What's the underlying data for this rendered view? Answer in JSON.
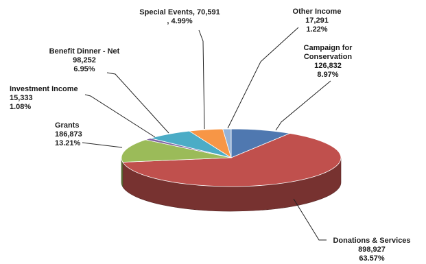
{
  "chart_data": {
    "type": "pie",
    "style": "3d",
    "slices": [
      {
        "name": "Campaign for Conservation",
        "value": 126832,
        "percent": "8.97%",
        "value_label": "126,832",
        "color": "#4f78b0"
      },
      {
        "name": "Donations & Services",
        "value": 898927,
        "percent": "63.57%",
        "value_label": "898,927",
        "color": "#c0504d"
      },
      {
        "name": "Grants",
        "value": 186873,
        "percent": "13.21%",
        "value_label": "186,873",
        "color": "#9bbb59"
      },
      {
        "name": "Investment Income",
        "value": 15333,
        "percent": "1.08%",
        "value_label": "15,333",
        "color": "#8064a2"
      },
      {
        "name": "Benefit Dinner - Net",
        "value": 98252,
        "percent": "6.95%",
        "value_label": "98,252",
        "color": "#4bacc6"
      },
      {
        "name": "Special Events",
        "value": 70591,
        "percent": "4.99%",
        "value_label": "70,591",
        "color": "#f79646"
      },
      {
        "name": "Other Income",
        "value": 17291,
        "percent": "1.22%",
        "value_label": "17,291",
        "color": "#95b3d7"
      }
    ]
  }
}
